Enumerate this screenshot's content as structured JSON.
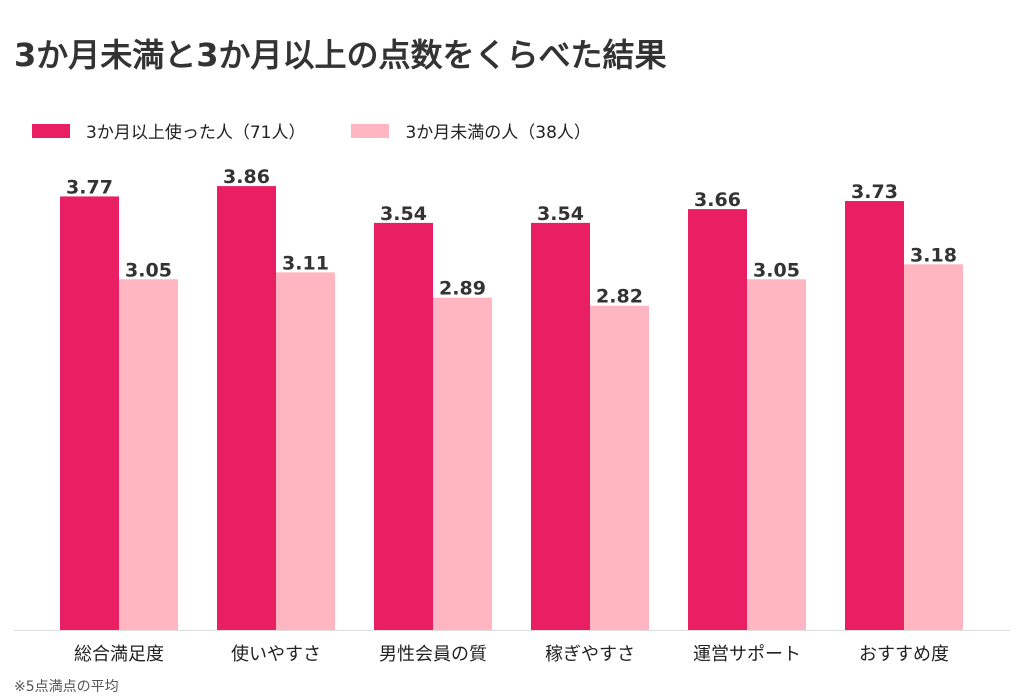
{
  "chart_data": {
    "type": "bar",
    "title": "3か月未満と3か月以上の点数をくらべた結果",
    "categories": [
      "総合満足度",
      "使いやすさ",
      "男性会員の質",
      "稼ぎやすさ",
      "運営サポート",
      "おすすめ度"
    ],
    "series": [
      {
        "name": "3か月以上使った人（71人）",
        "color": "#e91e63",
        "values": [
          3.77,
          3.86,
          3.54,
          3.54,
          3.66,
          3.73
        ],
        "labels": [
          "3.77",
          "3.86",
          "3.54",
          "3.54",
          "3.66",
          "3.73"
        ]
      },
      {
        "name": "3か月未満の人（38人）",
        "color": "#ffb6c1",
        "values": [
          3.05,
          3.11,
          2.89,
          2.82,
          3.05,
          3.18
        ],
        "labels": [
          "3.05",
          "3.11",
          "2.89",
          "2.82",
          "3.05",
          "3.18"
        ]
      }
    ],
    "ylim": [
      0,
      5
    ],
    "legend_position": "top-left",
    "grid": false,
    "note": "※5点満点の平均"
  }
}
